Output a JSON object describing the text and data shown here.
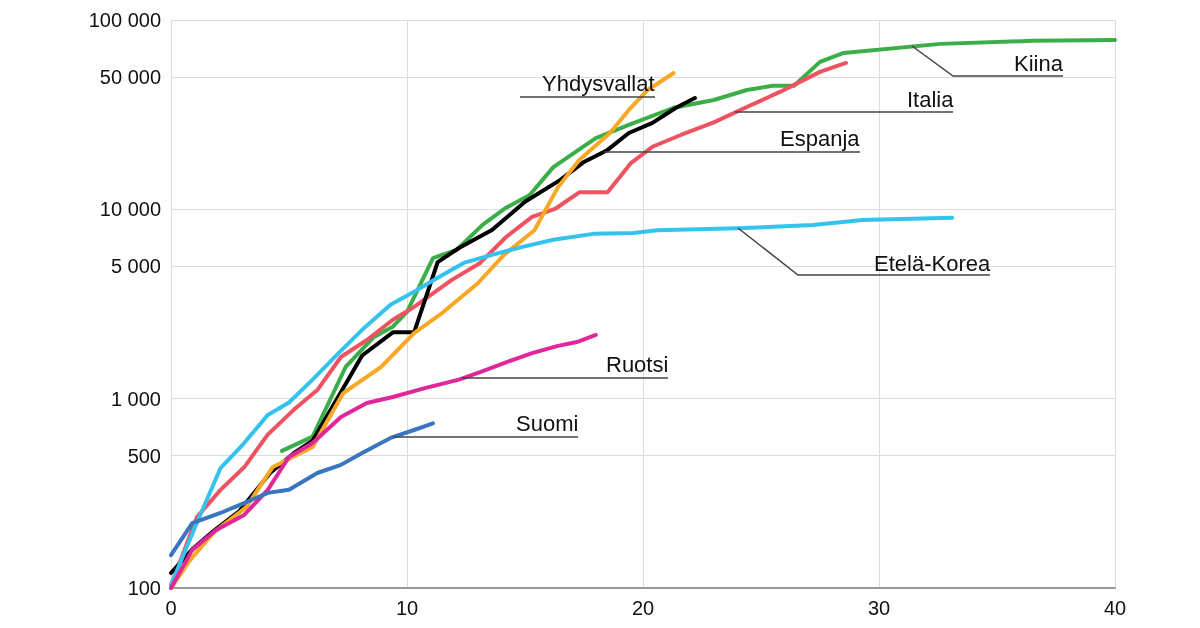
{
  "chart_data": {
    "type": "line",
    "xlim": [
      0,
      40
    ],
    "xticks": [
      0,
      10,
      20,
      30,
      40
    ],
    "log": "y",
    "ylim": [
      100,
      100000
    ],
    "yticks": [
      {
        "value": 100,
        "label": "100"
      },
      {
        "value": 500,
        "label": "500"
      },
      {
        "value": 1000,
        "label": "1 000"
      },
      {
        "value": 5000,
        "label": "5 000"
      },
      {
        "value": 10000,
        "label": "10 000"
      },
      {
        "value": 50000,
        "label": "50 000"
      },
      {
        "value": 100000,
        "label": "100 000"
      }
    ],
    "grid": true,
    "legend": false,
    "marker": "none",
    "line_style": "solid",
    "series": [
      {
        "name": "Kiina",
        "color": "#3cae49",
        "x": [
          4.7,
          6,
          7.4,
          8.6,
          9.4,
          10,
          11.1,
          12.1,
          13.2,
          14.2,
          15.2,
          16.2,
          18,
          19.4,
          21.3,
          23,
          24.4,
          25.5,
          26.4,
          27.5,
          28.5,
          32.6,
          36.5,
          40
        ],
        "values": [
          530,
          630,
          1470,
          2120,
          2400,
          2870,
          5530,
          6100,
          8280,
          10200,
          11900,
          16700,
          23800,
          27900,
          34400,
          37800,
          42700,
          44900,
          44900,
          60100,
          67000,
          74800,
          77600,
          78500
        ]
      },
      {
        "name": "Italia",
        "color": "#ef5361",
        "x": [
          0,
          1.1,
          2.1,
          3.1,
          4.1,
          5.2,
          6.2,
          7.2,
          8.3,
          9.4,
          10.3,
          11.9,
          13.1,
          14.2,
          15.3,
          16.3,
          17.3,
          18.5,
          19.5,
          20.4,
          21.6,
          23,
          24.4,
          25.8,
          27.5,
          28.6
        ],
        "values": [
          103,
          237,
          330,
          434,
          646,
          873,
          1110,
          1660,
          2040,
          2610,
          3050,
          4240,
          5210,
          7140,
          9120,
          10100,
          12300,
          12300,
          17600,
          21400,
          24700,
          28800,
          34700,
          41700,
          53200,
          59300
        ]
      },
      {
        "name": "Espanja",
        "color": "#000000",
        "x": [
          0,
          0.9,
          1.8,
          2.9,
          4.2,
          5.2,
          6,
          7,
          8.1,
          9.4,
          10.3,
          11.3,
          12.2,
          13.6,
          15,
          16.5,
          17.5,
          18.5,
          19.4,
          20.4,
          21.4,
          22.2
        ],
        "values": [
          120,
          160,
          200,
          255,
          405,
          515,
          600,
          980,
          1690,
          2240,
          2240,
          5260,
          6250,
          7780,
          10960,
          14300,
          17800,
          20600,
          25300,
          28600,
          34400,
          38700
        ]
      },
      {
        "name": "Yhdysvallat",
        "color": "#f9a825",
        "x": [
          0,
          0.8,
          1.8,
          3.2,
          4.3,
          6,
          7.3,
          8.9,
          10.3,
          11.5,
          13,
          14.1,
          15.4,
          16.4,
          17.3,
          18.6,
          19.4,
          20.2,
          21.3
        ],
        "values": [
          100,
          140,
          196,
          268,
          434,
          556,
          1070,
          1470,
          2220,
          2840,
          4070,
          5730,
          7760,
          13100,
          18200,
          25300,
          33500,
          42700,
          52500
        ]
      },
      {
        "name": "Etelä-Korea",
        "color": "#35c3ee",
        "x": [
          0,
          1.2,
          2.1,
          3.1,
          4.1,
          5,
          6,
          7.1,
          8.1,
          9.3,
          10.3,
          11.3,
          12.4,
          13.6,
          14.9,
          16.2,
          17.9,
          19.6,
          20.6,
          24,
          27.2,
          29.3,
          33.1
        ],
        "values": [
          104,
          237,
          430,
          583,
          820,
          955,
          1260,
          1740,
          2310,
          3130,
          3670,
          4350,
          5210,
          5750,
          6330,
          6910,
          7420,
          7500,
          7760,
          7940,
          8260,
          8790,
          9020
        ]
      },
      {
        "name": "Ruotsi",
        "color": "#e0279a",
        "x": [
          0,
          0.9,
          1.9,
          3.1,
          4.1,
          5,
          6,
          7.2,
          8.3,
          9.4,
          10.8,
          12.2,
          13.1,
          14.4,
          15.3,
          16.4,
          17.2,
          18
        ],
        "values": [
          100,
          159,
          202,
          243,
          330,
          492,
          583,
          800,
          949,
          1020,
          1140,
          1260,
          1380,
          1590,
          1740,
          1900,
          1990,
          2170
        ]
      },
      {
        "name": "Suomi",
        "color": "#3a75bf",
        "x": [
          0,
          0.9,
          2.1,
          3.1,
          4.1,
          5,
          6.2,
          7.2,
          8.1,
          9.3,
          10.3,
          11.1
        ],
        "values": [
          149,
          220,
          249,
          281,
          318,
          330,
          405,
          447,
          517,
          620,
          683,
          741
        ]
      }
    ]
  }
}
